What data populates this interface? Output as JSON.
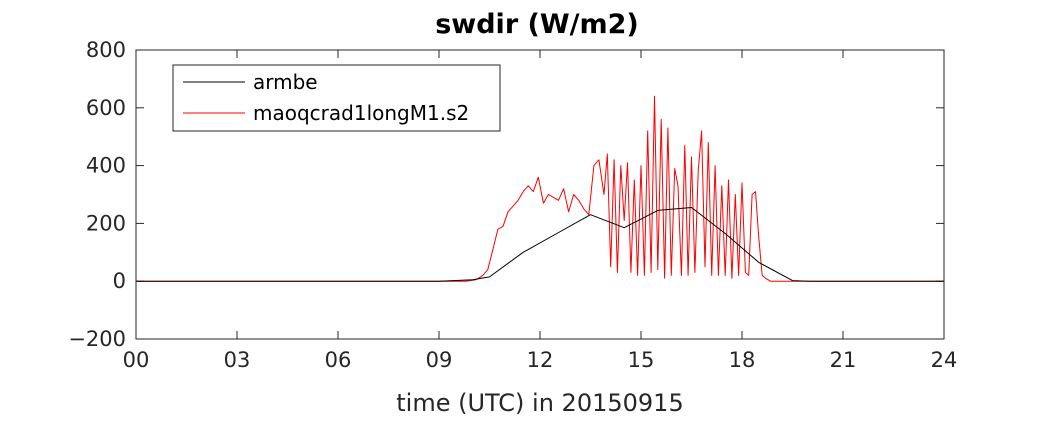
{
  "chart_data": {
    "type": "line",
    "title": "swdir  (W/m2)",
    "xlabel": "time (UTC) in 20150915",
    "ylabel": "",
    "xlim": [
      0,
      24
    ],
    "ylim": [
      -200,
      800
    ],
    "xticks": [
      0,
      3,
      6,
      9,
      12,
      15,
      18,
      21,
      24
    ],
    "xtick_labels": [
      "00",
      "03",
      "06",
      "09",
      "12",
      "15",
      "18",
      "21",
      "24"
    ],
    "yticks": [
      -200,
      0,
      200,
      400,
      600,
      800
    ],
    "ytick_labels": [
      "−200",
      "0",
      "200",
      "400",
      "600",
      "800"
    ],
    "grid": false,
    "legend_position": "top-left",
    "series": [
      {
        "name": "armbe",
        "color": "#000000",
        "x": [
          0,
          1,
          2,
          3,
          4,
          5,
          6,
          7,
          8,
          9,
          10,
          10.5,
          11.5,
          12.5,
          13.5,
          14.5,
          15.5,
          16.5,
          17.5,
          18.5,
          19.5,
          20,
          21,
          22,
          23,
          24
        ],
        "y": [
          0,
          0,
          0,
          0,
          0,
          0,
          0,
          0,
          0,
          0,
          5,
          15,
          100,
          165,
          230,
          185,
          245,
          255,
          165,
          65,
          2,
          0,
          0,
          0,
          0,
          0
        ]
      },
      {
        "name": "maoqcrad1longM1.s2",
        "color": "#ff0000",
        "x": [
          0,
          9.8,
          10.1,
          10.3,
          10.45,
          10.6,
          10.75,
          10.9,
          11.05,
          11.2,
          11.35,
          11.5,
          11.65,
          11.8,
          11.95,
          12.1,
          12.25,
          12.4,
          12.55,
          12.7,
          12.85,
          13.0,
          13.15,
          13.3,
          13.45,
          13.6,
          13.75,
          13.9,
          14.0,
          14.1,
          14.2,
          14.3,
          14.4,
          14.5,
          14.6,
          14.7,
          14.8,
          14.9,
          15.0,
          15.1,
          15.2,
          15.3,
          15.4,
          15.5,
          15.6,
          15.7,
          15.8,
          15.9,
          16.0,
          16.1,
          16.2,
          16.3,
          16.4,
          16.5,
          16.6,
          16.7,
          16.8,
          16.9,
          17.0,
          17.1,
          17.2,
          17.3,
          17.4,
          17.5,
          17.6,
          17.7,
          17.8,
          17.9,
          18.0,
          18.1,
          18.2,
          18.3,
          18.4,
          18.5,
          18.6,
          18.7,
          18.85,
          19.5,
          20,
          21,
          22,
          23,
          24
        ],
        "y": [
          0,
          0,
          5,
          20,
          40,
          110,
          180,
          190,
          240,
          260,
          280,
          310,
          330,
          310,
          360,
          270,
          300,
          290,
          280,
          320,
          240,
          300,
          280,
          250,
          230,
          400,
          420,
          300,
          440,
          50,
          420,
          30,
          400,
          210,
          410,
          30,
          350,
          20,
          400,
          20,
          520,
          30,
          640,
          40,
          560,
          10,
          530,
          20,
          390,
          330,
          20,
          470,
          20,
          430,
          30,
          380,
          520,
          50,
          480,
          20,
          400,
          20,
          330,
          20,
          350,
          10,
          300,
          20,
          340,
          30,
          20,
          300,
          310,
          150,
          20,
          10,
          0,
          0,
          0,
          0,
          0,
          0,
          0
        ]
      }
    ]
  }
}
